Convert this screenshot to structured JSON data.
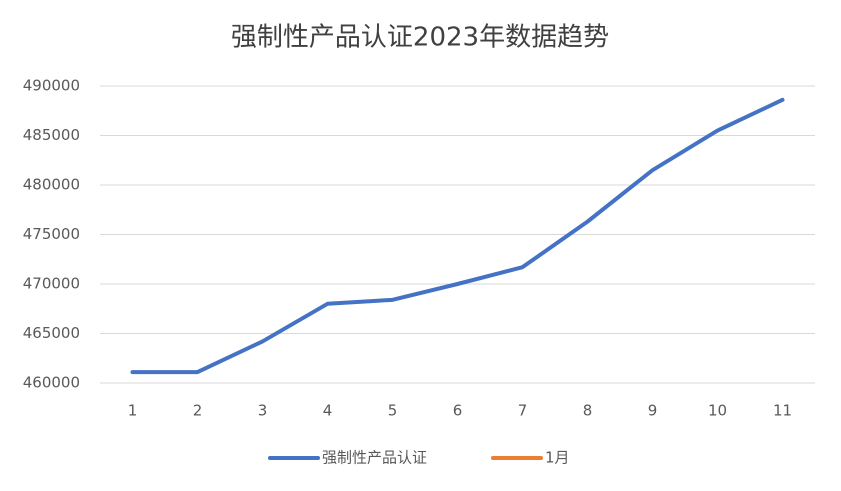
{
  "chart_data": {
    "type": "line",
    "title": "强制性产品认证2023年数据趋势",
    "categories": [
      1,
      2,
      3,
      4,
      5,
      6,
      7,
      8,
      9,
      10,
      11
    ],
    "series": [
      {
        "name": "强制性产品认证",
        "color": "#4472c4",
        "values": [
          461100,
          461100,
          464200,
          468000,
          468400,
          470000,
          471700,
          476300,
          481500,
          485500,
          488600
        ]
      },
      {
        "name": "1月",
        "color": "#ed7d31",
        "values": [
          null,
          null,
          null,
          null,
          null,
          null,
          null,
          null,
          null,
          null,
          null
        ]
      }
    ],
    "ylim": [
      460000,
      490000
    ],
    "yticks": [
      460000,
      465000,
      470000,
      475000,
      480000,
      485000,
      490000
    ],
    "grid": true,
    "legend": "bottom"
  }
}
